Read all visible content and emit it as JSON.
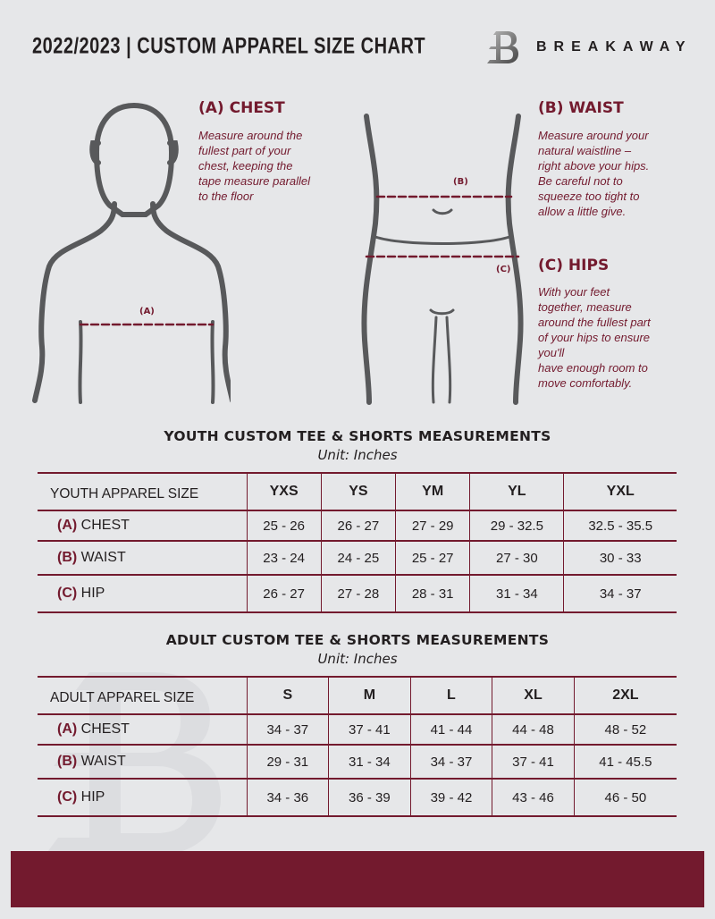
{
  "header": {
    "title": "2022/2023  |  CUSTOM APPAREL SIZE CHART",
    "brand": "BREAKAWAY",
    "logo_letter": "B"
  },
  "chest": {
    "heading": "(A) CHEST",
    "lines": [
      "Measure around the",
      "fullest part of your",
      "chest, keeping the",
      "tape measure parallel",
      "to the floor"
    ],
    "marker": "(A)"
  },
  "waist": {
    "heading": "(B) WAIST",
    "lines": [
      "Measure around your",
      "natural waistline –",
      "right above your hips.",
      "Be careful not to",
      "squeeze too tight to",
      "allow a little give."
    ],
    "marker": "(B)"
  },
  "hips": {
    "heading": "(C) HIPS",
    "lines": [
      "With your feet",
      "together, measure",
      "around the fullest part",
      "of your hips to ensure",
      "you'll",
      "have enough room to",
      "move comfortably."
    ],
    "marker": "(C)"
  },
  "colors": {
    "accent": "#731a2e",
    "background": "#e6e7e9"
  },
  "youth": {
    "title": "YOUTH CUSTOM TEE & SHORTS MEASUREMENTS",
    "unit": "Unit: Inches",
    "header": "YOUTH APPAREL SIZE",
    "sizes": [
      "YXS",
      "YS",
      "YM",
      "YL",
      "YXL"
    ],
    "rows": [
      {
        "letter": "(A)",
        "label": "CHEST",
        "values": [
          "25 - 26",
          "26 - 27",
          "27 - 29",
          "29 - 32.5",
          "32.5 - 35.5"
        ]
      },
      {
        "letter": "(B)",
        "label": "WAIST",
        "values": [
          "23 - 24",
          "24 - 25",
          "25 - 27",
          "27 - 30",
          "30 - 33"
        ]
      },
      {
        "letter": "(C)",
        "label": "HIP",
        "values": [
          "26 - 27",
          "27 - 28",
          "28 - 31",
          "31 - 34",
          "34 - 37"
        ]
      }
    ]
  },
  "adult": {
    "title": "ADULT CUSTOM TEE & SHORTS MEASUREMENTS",
    "unit": "Unit: Inches",
    "header": "ADULT APPAREL SIZE",
    "sizes": [
      "S",
      "M",
      "L",
      "XL",
      "2XL"
    ],
    "rows": [
      {
        "letter": "(A)",
        "label": "CHEST",
        "values": [
          "34 - 37",
          "37 - 41",
          "41 - 44",
          "44 - 48",
          "48 - 52"
        ]
      },
      {
        "letter": "(B)",
        "label": "WAIST",
        "values": [
          "29 - 31",
          "31 - 34",
          "34 - 37",
          "37 - 41",
          "41 - 45.5"
        ]
      },
      {
        "letter": "(C)",
        "label": "HIP",
        "values": [
          "34 - 36",
          "36 - 39",
          "39 - 42",
          "43 - 46",
          "46 - 50"
        ]
      }
    ]
  }
}
